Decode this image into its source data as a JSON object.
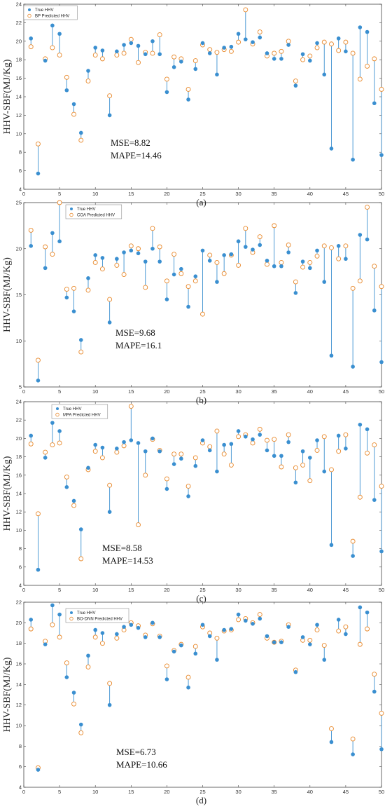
{
  "chart_data": [
    {
      "type": "scatter",
      "panel_label": "(a)",
      "ylabel": "HHV-SBF(MJ/Kg)",
      "xlim": [
        0,
        50
      ],
      "ylim": [
        4,
        24
      ],
      "xticks": [
        0,
        5,
        10,
        15,
        20,
        25,
        30,
        35,
        40,
        45,
        50
      ],
      "yticks": [
        4,
        6,
        8,
        10,
        12,
        14,
        16,
        18,
        20,
        22,
        24
      ],
      "legend_position": "top-left",
      "annotations": [
        "MSE=8.82",
        "MAPE=14.46"
      ],
      "series": [
        {
          "name": "True HHV",
          "marker": "filled-circle",
          "color": "#3a8fd0",
          "values": [
            20.3,
            5.7,
            17.9,
            21.7,
            20.8,
            14.7,
            13.2,
            10.1,
            16.8,
            19.3,
            19.0,
            12.0,
            18.9,
            19.6,
            19.8,
            19.5,
            18.6,
            20.0,
            18.6,
            14.5,
            17.2,
            17.8,
            13.7,
            17.0,
            19.8,
            18.7,
            16.4,
            19.3,
            19.4,
            20.8,
            20.2,
            19.9,
            20.4,
            18.7,
            18.1,
            18.1,
            19.6,
            15.2,
            18.6,
            17.9,
            19.8,
            16.4,
            8.4,
            20.3,
            18.9,
            7.2,
            21.5,
            21.0,
            13.3,
            7.7
          ]
        },
        {
          "name": "BP Predicted HHV",
          "marker": "open-circle",
          "color": "#e8882a",
          "values": [
            19.4,
            8.9,
            18.1,
            19.3,
            18.5,
            16.1,
            12.1,
            9.3,
            15.7,
            18.5,
            18.1,
            14.1,
            18.5,
            18.7,
            20.2,
            17.7,
            18.8,
            18.7,
            20.7,
            15.9,
            18.3,
            18.1,
            14.8,
            17.9,
            19.6,
            19.1,
            18.8,
            19.1,
            18.9,
            19.9,
            23.4,
            19.7,
            21.0,
            18.4,
            18.7,
            18.9,
            20.0,
            15.7,
            18.0,
            18.4,
            19.3,
            19.9,
            19.7,
            19.0,
            19.9,
            18.7,
            15.9,
            17.3,
            18.1,
            14.8
          ]
        }
      ]
    },
    {
      "type": "scatter",
      "panel_label": "(b)",
      "ylabel": "HHV-SBF(MJ/Kg)",
      "xlim": [
        0,
        50
      ],
      "ylim": [
        5,
        25
      ],
      "xticks": [
        0,
        5,
        10,
        15,
        20,
        25,
        30,
        35,
        40,
        45,
        50
      ],
      "yticks": [
        5,
        10,
        15,
        20,
        25
      ],
      "legend_position": "top-left",
      "annotations": [
        "MSE=9.68",
        "MAPE=16.1"
      ],
      "series": [
        {
          "name": "True HHV",
          "marker": "filled-circle",
          "color": "#3a8fd0",
          "values": [
            20.3,
            5.7,
            17.9,
            21.7,
            20.8,
            14.7,
            13.2,
            10.1,
            16.8,
            19.3,
            19.0,
            12.0,
            18.9,
            19.6,
            19.8,
            19.5,
            18.6,
            20.0,
            18.6,
            14.5,
            17.2,
            17.8,
            13.7,
            17.0,
            19.8,
            18.7,
            16.4,
            19.3,
            19.4,
            20.8,
            20.2,
            19.9,
            20.4,
            18.7,
            18.1,
            18.1,
            19.6,
            15.2,
            18.6,
            17.9,
            19.8,
            16.4,
            8.4,
            20.3,
            18.9,
            7.2,
            21.5,
            21.0,
            13.3,
            7.7
          ]
        },
        {
          "name": "COA Predicted HHV",
          "marker": "open-circle",
          "color": "#e8882a",
          "values": [
            22.0,
            7.9,
            20.2,
            19.4,
            25.0,
            15.6,
            15.7,
            8.8,
            15.5,
            18.5,
            17.8,
            14.5,
            18.2,
            17.2,
            20.3,
            20.0,
            15.8,
            22.2,
            20.2,
            16.5,
            19.4,
            17.3,
            15.9,
            16.5,
            12.9,
            19.3,
            18.5,
            17.3,
            19.3,
            18.2,
            22.2,
            19.6,
            21.3,
            18.3,
            22.5,
            18.5,
            20.4,
            16.4,
            18.0,
            18.5,
            19.2,
            20.3,
            20.1,
            18.9,
            20.3,
            15.7,
            16.5,
            24.5,
            18.1,
            15.9
          ]
        }
      ]
    },
    {
      "type": "scatter",
      "panel_label": "(c)",
      "ylabel": "HHV-SBF(MJ/Kg)",
      "xlim": [
        0,
        50
      ],
      "ylim": [
        4,
        24
      ],
      "xticks": [
        0,
        5,
        10,
        15,
        20,
        25,
        30,
        35,
        40,
        45,
        50
      ],
      "yticks": [
        4,
        6,
        8,
        10,
        12,
        14,
        16,
        18,
        20,
        22,
        24
      ],
      "legend_position": "top-left",
      "annotations": [
        "MSE=8.58",
        "MAPE=14.53"
      ],
      "series": [
        {
          "name": "True HHV",
          "marker": "filled-circle",
          "color": "#3a8fd0",
          "values": [
            20.3,
            5.7,
            17.9,
            21.7,
            20.8,
            14.7,
            13.2,
            10.1,
            16.8,
            19.3,
            19.0,
            12.0,
            18.9,
            19.6,
            19.8,
            19.5,
            18.6,
            20.0,
            18.6,
            14.5,
            17.2,
            17.8,
            13.7,
            17.0,
            19.8,
            18.7,
            16.4,
            19.3,
            19.4,
            20.8,
            20.2,
            19.9,
            20.4,
            18.7,
            18.1,
            18.1,
            19.6,
            15.2,
            18.6,
            17.9,
            19.8,
            16.4,
            8.4,
            20.3,
            18.9,
            7.2,
            21.5,
            21.0,
            13.3,
            7.7
          ]
        },
        {
          "name": "MPA Predicted HHV",
          "marker": "open-circle",
          "color": "#e8882a",
          "values": [
            19.4,
            11.8,
            18.5,
            19.3,
            19.5,
            15.8,
            12.7,
            6.9,
            16.6,
            18.6,
            17.9,
            14.9,
            18.5,
            19.2,
            23.5,
            10.6,
            16.0,
            19.9,
            18.7,
            15.6,
            18.3,
            18.3,
            14.8,
            17.9,
            19.5,
            19.1,
            20.8,
            18.3,
            17.1,
            20.2,
            20.4,
            19.5,
            21.0,
            19.8,
            19.9,
            16.9,
            20.4,
            16.8,
            17.1,
            15.4,
            18.7,
            20.2,
            16.6,
            18.6,
            20.4,
            8.8,
            13.6,
            18.4,
            19.3,
            14.8
          ]
        }
      ]
    },
    {
      "type": "scatter",
      "panel_label": "(d)",
      "ylabel": "HHV-SBF(MJ/Kg)",
      "xlim": [
        0,
        50
      ],
      "ylim": [
        4,
        22
      ],
      "xticks": [
        0,
        5,
        10,
        15,
        20,
        25,
        30,
        35,
        40,
        45,
        50
      ],
      "yticks": [
        4,
        6,
        8,
        10,
        12,
        14,
        16,
        18,
        20,
        22
      ],
      "legend_position": "top-left",
      "annotations": [
        "MSE=6.73",
        "MAPE=10.66"
      ],
      "series": [
        {
          "name": "True HHV",
          "marker": "filled-circle",
          "color": "#3a8fd0",
          "values": [
            20.3,
            5.7,
            17.9,
            21.7,
            20.8,
            14.7,
            13.2,
            10.1,
            16.8,
            19.3,
            19.0,
            12.0,
            18.9,
            19.6,
            19.8,
            19.5,
            18.6,
            20.0,
            18.6,
            14.5,
            17.2,
            17.8,
            13.7,
            17.0,
            19.8,
            18.7,
            16.4,
            19.3,
            19.4,
            20.8,
            20.2,
            19.9,
            20.4,
            18.7,
            18.1,
            18.1,
            19.6,
            15.2,
            18.6,
            17.9,
            19.8,
            16.4,
            8.4,
            20.3,
            18.9,
            7.2,
            21.5,
            21.0,
            13.3,
            7.7
          ]
        },
        {
          "name": "BO-DNN Predicted HHV",
          "marker": "open-circle",
          "color": "#e8882a",
          "values": [
            19.4,
            5.9,
            18.2,
            19.8,
            18.6,
            16.1,
            12.1,
            9.3,
            15.7,
            18.6,
            18.0,
            14.1,
            18.5,
            19.3,
            20.0,
            19.7,
            18.8,
            19.9,
            18.7,
            15.8,
            17.3,
            17.9,
            14.7,
            17.7,
            19.6,
            19.0,
            18.5,
            19.2,
            19.3,
            20.3,
            20.4,
            20.0,
            20.8,
            18.5,
            18.1,
            18.2,
            19.8,
            15.4,
            18.3,
            18.3,
            19.3,
            17.8,
            9.7,
            19.2,
            19.6,
            8.7,
            17.9,
            19.4,
            15.0,
            11.2
          ]
        }
      ]
    }
  ]
}
